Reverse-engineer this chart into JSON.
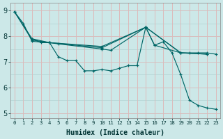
{
  "background_color": "#cce8e8",
  "grid_color": "#bbdddd",
  "line_color": "#006666",
  "xlabel": "Humidex (Indice chaleur)",
  "ylabel_ticks": [
    5,
    6,
    7,
    8,
    9
  ],
  "xlim": [
    -0.5,
    23.5
  ],
  "ylim": [
    4.8,
    9.3
  ],
  "lines": [
    {
      "x": [
        0,
        1,
        2,
        4,
        5,
        6,
        7,
        8,
        9,
        10,
        11,
        12,
        13,
        14,
        15,
        16,
        17,
        18,
        19,
        20,
        21,
        22,
        23
      ],
      "y": [
        8.95,
        8.5,
        7.8,
        7.75,
        7.2,
        7.05,
        7.05,
        6.65,
        6.65,
        6.7,
        6.65,
        6.75,
        6.85,
        6.85,
        8.35,
        7.65,
        7.78,
        7.35,
        6.5,
        5.5,
        5.3,
        5.2,
        5.15
      ]
    },
    {
      "x": [
        2,
        3,
        4,
        5,
        10,
        11,
        15,
        16,
        19,
        20,
        21,
        22,
        23
      ],
      "y": [
        7.9,
        7.75,
        7.75,
        7.7,
        7.5,
        7.45,
        8.35,
        7.65,
        7.35,
        7.35,
        7.35,
        7.35,
        7.3
      ]
    },
    {
      "x": [
        0,
        2,
        4,
        10,
        15,
        19,
        22
      ],
      "y": [
        8.95,
        7.9,
        7.75,
        7.55,
        8.35,
        7.35,
        7.3
      ]
    },
    {
      "x": [
        0,
        2,
        4,
        10,
        15,
        19,
        22
      ],
      "y": [
        8.95,
        7.85,
        7.75,
        7.6,
        8.35,
        7.35,
        7.3
      ]
    }
  ]
}
